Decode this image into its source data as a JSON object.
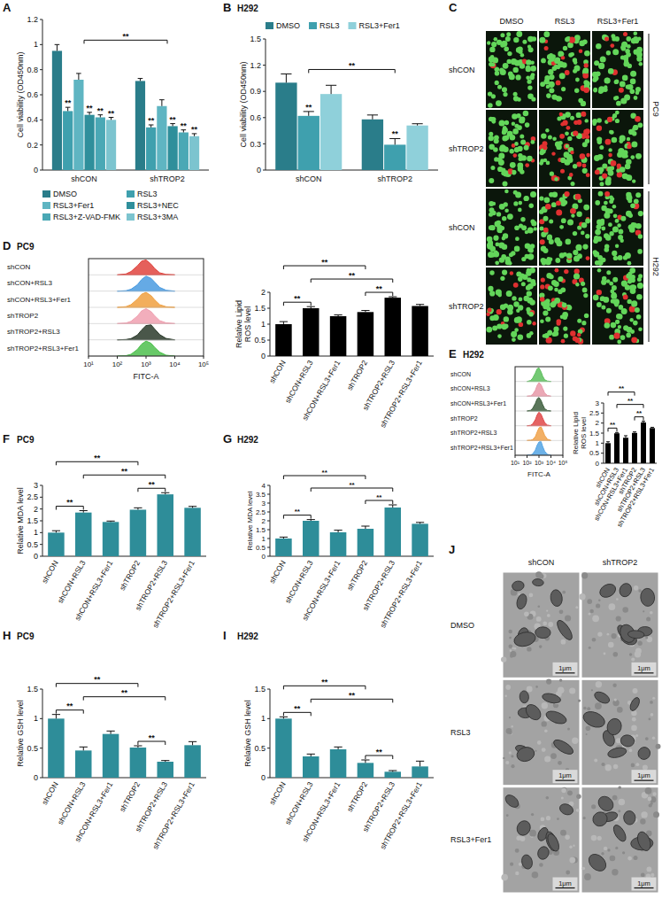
{
  "chart_data": [
    {
      "panel_label": "A",
      "type": "bar",
      "y_label": "Cell viability (OD450nm)",
      "categories": [
        "shCON",
        "shTROP2"
      ],
      "series": [
        {
          "name": "DMSO",
          "color": "#2a7d8a",
          "values": [
            0.95,
            0.71
          ],
          "errors": [
            0.05,
            0.02
          ]
        },
        {
          "name": "RSL3",
          "color": "#3fa0ae",
          "values": [
            0.47,
            0.34
          ],
          "errors": [
            0.03,
            0.02
          ]
        },
        {
          "name": "RSL3+Fer1",
          "color": "#5fb5c2",
          "values": [
            0.72,
            0.51
          ],
          "errors": [
            0.05,
            0.05
          ]
        },
        {
          "name": "RSL3+NEC",
          "color": "#2f8f9b",
          "values": [
            0.44,
            0.35
          ],
          "errors": [
            0.02,
            0.02
          ]
        },
        {
          "name": "RSL3+Z-VAD-FMK",
          "color": "#4aa8b5",
          "values": [
            0.42,
            0.3
          ],
          "errors": [
            0.02,
            0.02
          ]
        },
        {
          "name": "RSL3+3MA",
          "color": "#7cc4cf",
          "values": [
            0.4,
            0.27
          ],
          "errors": [
            0.02,
            0.02
          ]
        }
      ],
      "ylim": [
        0,
        1.2
      ],
      "yticks": [
        0,
        0.2,
        0.4,
        0.6,
        0.8,
        1,
        1.2
      ],
      "legend": "bottom",
      "annotations": [
        {
          "text": "**",
          "category": 0,
          "series": 1
        },
        {
          "text": "**",
          "category": 0,
          "series": 3
        },
        {
          "text": "**",
          "category": 0,
          "series": 4
        },
        {
          "text": "**",
          "category": 0,
          "series": 5
        },
        {
          "text": "**",
          "category": 1,
          "series": 1
        },
        {
          "text": "**",
          "category": 1,
          "series": 3
        },
        {
          "text": "**",
          "category": 1,
          "series": 4
        },
        {
          "text": "**",
          "category": 1,
          "series": 5
        }
      ],
      "brackets": [
        {
          "text": "**",
          "from": 0,
          "to": 1
        }
      ]
    },
    {
      "panel_label": "B",
      "type": "bar",
      "title": "H292",
      "y_label": "Cell viability (OD450nm)",
      "categories": [
        "shCON",
        "shTROP2"
      ],
      "series": [
        {
          "name": "DMSO",
          "color": "#2a7d8a",
          "values": [
            1.0,
            0.58
          ],
          "errors": [
            0.1,
            0.05
          ]
        },
        {
          "name": "RSL3",
          "color": "#3fa0ae",
          "values": [
            0.62,
            0.29
          ],
          "errors": [
            0.05,
            0.07
          ]
        },
        {
          "name": "RSL3+Fer1",
          "color": "#8fd0da",
          "values": [
            0.87,
            0.51
          ],
          "errors": [
            0.1,
            0.02
          ]
        }
      ],
      "ylim": [
        0,
        1.5
      ],
      "yticks": [
        0,
        0.3,
        0.6,
        0.9,
        1.2,
        1.5
      ],
      "legend": "top",
      "annotations": [
        {
          "text": "**",
          "category": 0,
          "series": 1
        },
        {
          "text": "**",
          "category": 1,
          "series": 1
        }
      ],
      "brackets": [
        {
          "text": "**",
          "from": 0,
          "to": 1
        }
      ]
    },
    {
      "panel_label": "C",
      "type": "image_grid",
      "columns": [
        "DMSO",
        "RSL3",
        "RSL3+Fer1"
      ],
      "rows": [
        "shCON",
        "shTROP2",
        "shCON",
        "shTROP2"
      ],
      "row_groups": [
        "PC9",
        "H292"
      ]
    },
    {
      "panel_label": "D",
      "type": "density",
      "title": "PC9",
      "x_label": "FITC-A",
      "log": "x",
      "x": [
        100,
        200,
        300,
        500,
        700,
        1000,
        1500,
        2000,
        3000,
        5000,
        10000
      ],
      "series": [
        {
          "name": "shCON",
          "color": "#e0443e",
          "values": [
            0,
            0.06,
            0.22,
            0.6,
            0.92,
            1,
            0.72,
            0.42,
            0.14,
            0.03,
            0
          ]
        },
        {
          "name": "shCON+RSL3",
          "color": "#4a9be0",
          "values": [
            0,
            0.03,
            0.12,
            0.42,
            0.78,
            1,
            0.86,
            0.6,
            0.25,
            0.06,
            0
          ]
        },
        {
          "name": "shCON+RSL3+Fer1",
          "color": "#f0a040",
          "values": [
            0,
            0.05,
            0.18,
            0.55,
            0.88,
            1,
            0.78,
            0.5,
            0.18,
            0.04,
            0
          ]
        },
        {
          "name": "shTROP2",
          "color": "#f0a0b0",
          "values": [
            0,
            0.04,
            0.15,
            0.5,
            0.85,
            1,
            0.8,
            0.52,
            0.2,
            0.05,
            0
          ]
        },
        {
          "name": "shTROP2+RSL3",
          "color": "#2a3a2a",
          "values": [
            0,
            0.02,
            0.08,
            0.32,
            0.66,
            0.95,
            1,
            0.72,
            0.35,
            0.09,
            0
          ]
        },
        {
          "name": "shTROP2+RSL3+Fer1",
          "color": "#4ec04e",
          "values": [
            0,
            0.03,
            0.12,
            0.44,
            0.8,
            1,
            0.86,
            0.58,
            0.26,
            0.06,
            0
          ]
        }
      ],
      "xlim": [
        10,
        100000
      ],
      "xticks": [
        {
          "value": 10,
          "label": "10¹"
        },
        {
          "value": 100,
          "label": "10²"
        },
        {
          "value": 1000,
          "label": "10³"
        },
        {
          "value": 10000,
          "label": "10⁴"
        },
        {
          "value": 100000,
          "label": "10⁵"
        }
      ],
      "ylim": [
        0,
        1
      ],
      "tick_labels": "x"
    },
    {
      "type": "bar",
      "y_label": "Relative Lipid ROS level",
      "categories": [
        "shCON",
        "shCON+RSL3",
        "shCON+RSL3+Fer1",
        "shTROP2",
        "shTROP2+RSL3",
        "shTROP2+RSL3+Fer1"
      ],
      "values": [
        1.0,
        1.5,
        1.25,
        1.38,
        1.83,
        1.57
      ],
      "errors": [
        0.08,
        0.05,
        0.04,
        0.05,
        0.03,
        0.05
      ],
      "color": "#000000",
      "ylim": [
        0,
        2
      ],
      "yticks": [
        0,
        0.5,
        1,
        1.5,
        2
      ],
      "brackets": [
        {
          "text": "**",
          "from": 0,
          "to": 1
        },
        {
          "text": "**",
          "from": 3,
          "to": 4
        },
        {
          "text": "**",
          "from": 1,
          "to": 4
        },
        {
          "text": "**",
          "from": 0,
          "to": 3
        }
      ]
    },
    {
      "panel_label": "E",
      "type": "density",
      "title": "H292",
      "x_label": "FITC-A",
      "log": "x",
      "x": [
        100,
        200,
        300,
        500,
        700,
        1000,
        1500,
        2000,
        3000,
        5000,
        10000
      ],
      "series": [
        {
          "name": "shCON",
          "color": "#5cbf5c",
          "values": [
            0,
            0.07,
            0.24,
            0.62,
            0.93,
            1,
            0.7,
            0.4,
            0.13,
            0.03,
            0
          ]
        },
        {
          "name": "shCON+RSL3",
          "color": "#e899a8",
          "values": [
            0,
            0.03,
            0.13,
            0.44,
            0.8,
            1,
            0.84,
            0.58,
            0.24,
            0.06,
            0
          ]
        },
        {
          "name": "shCON+RSL3+Fer1",
          "color": "#3d5e3d",
          "values": [
            0,
            0.05,
            0.19,
            0.56,
            0.89,
            1,
            0.77,
            0.48,
            0.17,
            0.04,
            0
          ]
        },
        {
          "name": "shTROP2",
          "color": "#e04848",
          "values": [
            0,
            0.03,
            0.13,
            0.45,
            0.8,
            1,
            0.84,
            0.57,
            0.23,
            0.05,
            0
          ]
        },
        {
          "name": "shTROP2+RSL3",
          "color": "#f0a24a",
          "values": [
            0,
            0.02,
            0.07,
            0.28,
            0.62,
            0.93,
            1,
            0.76,
            0.38,
            0.1,
            0
          ]
        },
        {
          "name": "shTROP2+RSL3+Fer1",
          "color": "#54a4e4",
          "values": [
            0,
            0.02,
            0.1,
            0.38,
            0.74,
            0.98,
            1,
            0.66,
            0.3,
            0.07,
            0
          ]
        }
      ],
      "xlim": [
        10,
        100000
      ],
      "xticks": [
        {
          "value": 10,
          "label": "10¹"
        },
        {
          "value": 100,
          "label": "10²"
        },
        {
          "value": 1000,
          "label": "10³"
        },
        {
          "value": 10000,
          "label": "10⁴"
        },
        {
          "value": 100000,
          "label": "10⁵"
        }
      ],
      "ylim": [
        0,
        1
      ],
      "tick_labels": "x"
    },
    {
      "type": "bar",
      "y_label": "Relative Lipid ROS level",
      "categories": [
        "shCON",
        "shCON+RSL3",
        "shCON+RSL3+Fer1",
        "shTROP2",
        "shTROP2+RSL3",
        "shTROP2+RSL3+Fer1"
      ],
      "values": [
        1.0,
        1.49,
        1.27,
        1.51,
        2.03,
        1.75
      ],
      "errors": [
        0.07,
        0.04,
        0.1,
        0.05,
        0.06,
        0.04
      ],
      "color": "#000000",
      "ylim": [
        0,
        3
      ],
      "yticks": [
        0,
        0.5,
        1,
        1.5,
        2,
        2.5,
        3
      ],
      "brackets": [
        {
          "text": "**",
          "from": 0,
          "to": 1
        },
        {
          "text": "**",
          "from": 3,
          "to": 4
        },
        {
          "text": "**",
          "from": 1,
          "to": 4
        },
        {
          "text": "**",
          "from": 0,
          "to": 3
        }
      ]
    },
    {
      "panel_label": "F",
      "type": "bar",
      "title": "PC9",
      "y_label": "Relative MDA level",
      "categories": [
        "shCON",
        "shCON+RSL3",
        "shCON+RSL3+Fer1",
        "shTROP2",
        "shTROP2+RSL3",
        "shTROP2+RSL3+Fer1"
      ],
      "values": [
        1.0,
        1.85,
        1.45,
        1.97,
        2.62,
        2.05
      ],
      "errors": [
        0.08,
        0.08,
        0.04,
        0.08,
        0.07,
        0.06
      ],
      "color": "#2e8d99",
      "ylim": [
        0,
        3
      ],
      "yticks": [
        0,
        0.5,
        1,
        1.5,
        2,
        2.5,
        3
      ],
      "brackets": [
        {
          "text": "**",
          "from": 0,
          "to": 1
        },
        {
          "text": "**",
          "from": 3,
          "to": 4
        },
        {
          "text": "**",
          "from": 1,
          "to": 4
        },
        {
          "text": "**",
          "from": 0,
          "to": 3
        }
      ]
    },
    {
      "panel_label": "G",
      "type": "bar",
      "title": "H292",
      "y_label": "Relative MDA level",
      "categories": [
        "shCON",
        "shCON+RSL3",
        "shCON+RSL3+Fer1",
        "shTROP2",
        "shTROP2+RSL3",
        "shTROP2+RSL3+Fer1"
      ],
      "values": [
        1.0,
        2.0,
        1.35,
        1.55,
        2.75,
        1.83
      ],
      "errors": [
        0.08,
        0.07,
        0.12,
        0.15,
        0.15,
        0.08
      ],
      "color": "#2e8d99",
      "ylim": [
        0,
        4
      ],
      "yticks": [
        0,
        0.5,
        1,
        1.5,
        2,
        2.5,
        3,
        3.5,
        4
      ],
      "brackets": [
        {
          "text": "**",
          "from": 0,
          "to": 1
        },
        {
          "text": "**",
          "from": 3,
          "to": 4
        },
        {
          "text": "**",
          "from": 1,
          "to": 4
        },
        {
          "text": "**",
          "from": 0,
          "to": 3
        }
      ]
    },
    {
      "panel_label": "H",
      "type": "bar",
      "title": "PC9",
      "y_label": "Relative GSH level",
      "categories": [
        "shCON",
        "shCON+RSL3",
        "shCON+RSL3+Fer1",
        "shTROP2",
        "shTROP2+RSL3",
        "shTROP2+RSL3+Fer1"
      ],
      "values": [
        1.0,
        0.46,
        0.74,
        0.51,
        0.27,
        0.55
      ],
      "errors": [
        0.07,
        0.06,
        0.05,
        0.03,
        0.02,
        0.06
      ],
      "color": "#2e8d99",
      "ylim": [
        0,
        1.5
      ],
      "yticks": [
        0,
        0.5,
        1,
        1.5
      ],
      "brackets": [
        {
          "text": "**",
          "from": 0,
          "to": 1
        },
        {
          "text": "**",
          "from": 3,
          "to": 4
        },
        {
          "text": "**",
          "from": 1,
          "to": 4
        },
        {
          "text": "**",
          "from": 0,
          "to": 3
        }
      ]
    },
    {
      "panel_label": "I",
      "type": "bar",
      "title": "H292",
      "y_label": "Relative GSH level",
      "categories": [
        "shCON",
        "shCON+RSL3",
        "shCON+RSL3+Fer1",
        "shTROP2",
        "shTROP2+RSL3",
        "shTROP2+RSL3+Fer1"
      ],
      "values": [
        1.0,
        0.36,
        0.48,
        0.25,
        0.1,
        0.19
      ],
      "errors": [
        0.03,
        0.04,
        0.04,
        0.05,
        0.02,
        0.09
      ],
      "color": "#2e8d99",
      "ylim": [
        0,
        1.5
      ],
      "yticks": [
        0,
        0.5,
        1,
        1.5
      ],
      "brackets": [
        {
          "text": "**",
          "from": 0,
          "to": 1
        },
        {
          "text": "**",
          "from": 3,
          "to": 4
        },
        {
          "text": "**",
          "from": 1,
          "to": 4
        },
        {
          "text": "**",
          "from": 0,
          "to": 3
        }
      ]
    },
    {
      "panel_label": "J",
      "type": "image_grid",
      "columns": [
        "shCON",
        "shTROP2"
      ],
      "rows": [
        "DMSO",
        "RSL3",
        "RSL3+Fer1"
      ],
      "scale_bar": "1μm"
    }
  ]
}
